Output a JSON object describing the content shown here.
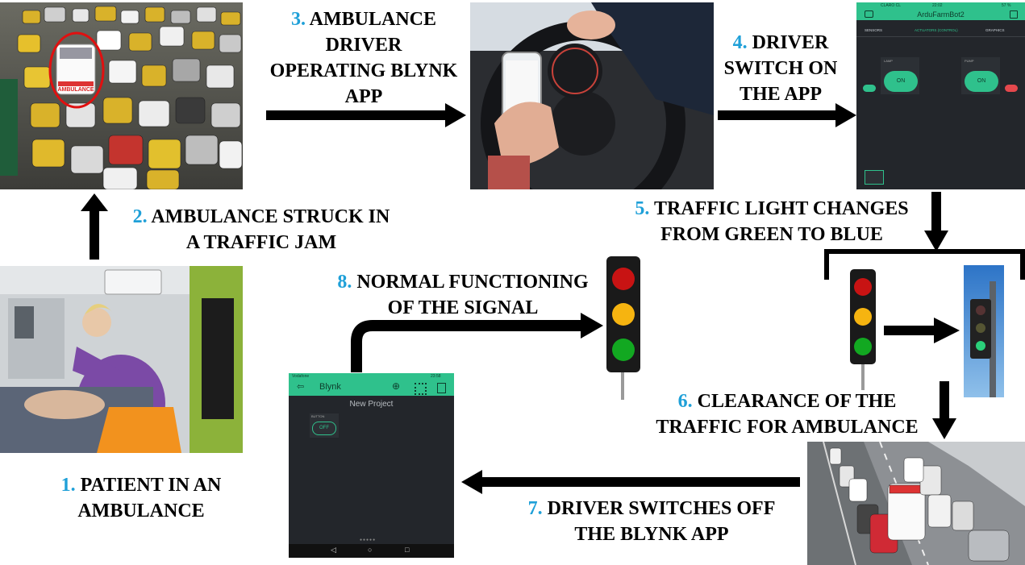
{
  "steps": [
    {
      "num": "1.",
      "line1": "PATIENT IN AN",
      "line2": "AMBULANCE"
    },
    {
      "num": "2.",
      "line1": "AMBULANCE STRUCK IN",
      "line2": "A TRAFFIC JAM"
    },
    {
      "num": "3.",
      "line1": "AMBULANCE",
      "line2": "DRIVER",
      "line3": "OPERATING BLYNK",
      "line4": "APP"
    },
    {
      "num": "4.",
      "line1": "DRIVER",
      "line2": "SWITCH ON",
      "line3": "THE APP"
    },
    {
      "num": "5.",
      "line1": "TRAFFIC LIGHT CHANGES",
      "line2": "FROM GREEN TO BLUE"
    },
    {
      "num": "6.",
      "line1": "CLEARANCE OF THE",
      "line2": "TRAFFIC FOR AMBULANCE"
    },
    {
      "num": "7.",
      "line1": "DRIVER SWITCHES OFF",
      "line2": "THE BLYNK APP"
    },
    {
      "num": "8.",
      "line1": "NORMAL FUNCTIONING",
      "line2": "OF THE SIGNAL"
    }
  ],
  "ambulance_text": "AMBULANCE",
  "app_on": {
    "status_left": "CLARO CL",
    "status_time": "22:02",
    "status_right": "57 %",
    "title": "ArduFarmBot2",
    "tabs": [
      "SENSORS",
      "ACTUATORS (CONTROL)",
      "GRAPHICS"
    ],
    "lamp_label": "LAMP",
    "pump_label": "PUMP",
    "lamp_button": "ON",
    "pump_button": "ON"
  },
  "app_off": {
    "status_left": "Vodafone",
    "status_right": "23:58",
    "title": "Blynk",
    "project": "New Project",
    "button_label": "BUTTON",
    "button_value": "OFF"
  },
  "colors": {
    "step_number": "#1fa0d8",
    "blynk_green": "#2fc18c",
    "app_bg": "#23262b"
  }
}
